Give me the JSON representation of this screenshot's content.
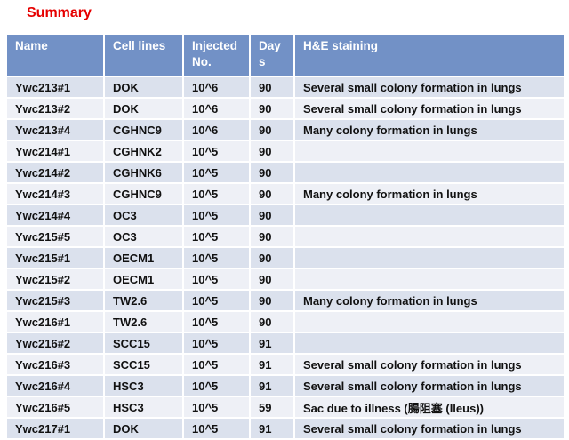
{
  "title": "Summary",
  "colors": {
    "title_color": "#e60000",
    "header_bg": "#7291c6",
    "header_text": "#ffffff",
    "row_odd": "#dbe1ed",
    "row_even": "#eef0f6",
    "cell_text": "#111111",
    "border": "#ffffff"
  },
  "table": {
    "columns": [
      {
        "label": "Name"
      },
      {
        "label": "Cell lines"
      },
      {
        "label": "Injected No."
      },
      {
        "label": "Days"
      },
      {
        "label": "H&E staining"
      }
    ],
    "rows": [
      [
        "Ywc213#1",
        "DOK",
        "10^6",
        "90",
        "Several small colony formation in lungs"
      ],
      [
        "Ywc213#2",
        "DOK",
        "10^6",
        "90",
        "Several small colony formation in lungs"
      ],
      [
        "Ywc213#4",
        "CGHNC9",
        "10^6",
        "90",
        "Many colony formation in lungs"
      ],
      [
        "Ywc214#1",
        "CGHNK2",
        "10^5",
        "90",
        ""
      ],
      [
        "Ywc214#2",
        "CGHNK6",
        "10^5",
        "90",
        ""
      ],
      [
        "Ywc214#3",
        "CGHNC9",
        "10^5",
        "90",
        "Many colony formation in lungs"
      ],
      [
        "Ywc214#4",
        "OC3",
        "10^5",
        "90",
        ""
      ],
      [
        "Ywc215#5",
        "OC3",
        "10^5",
        "90",
        ""
      ],
      [
        "Ywc215#1",
        "OECM1",
        "10^5",
        "90",
        ""
      ],
      [
        "Ywc215#2",
        "OECM1",
        "10^5",
        "90",
        ""
      ],
      [
        "Ywc215#3",
        "TW2.6",
        "10^5",
        "90",
        "Many colony formation in lungs"
      ],
      [
        "Ywc216#1",
        "TW2.6",
        "10^5",
        "90",
        ""
      ],
      [
        "Ywc216#2",
        "SCC15",
        "10^5",
        "91",
        ""
      ],
      [
        "Ywc216#3",
        "SCC15",
        "10^5",
        "91",
        "Several small colony formation in lungs"
      ],
      [
        "Ywc216#4",
        "HSC3",
        "10^5",
        "91",
        "Several small colony formation in lungs"
      ],
      [
        "Ywc216#5",
        "HSC3",
        "10^5",
        "59",
        "Sac due to illness (腸阻塞 (Ileus))"
      ],
      [
        "Ywc217#1",
        "DOK",
        "10^5",
        "91",
        "Several small colony formation in lungs"
      ]
    ]
  }
}
